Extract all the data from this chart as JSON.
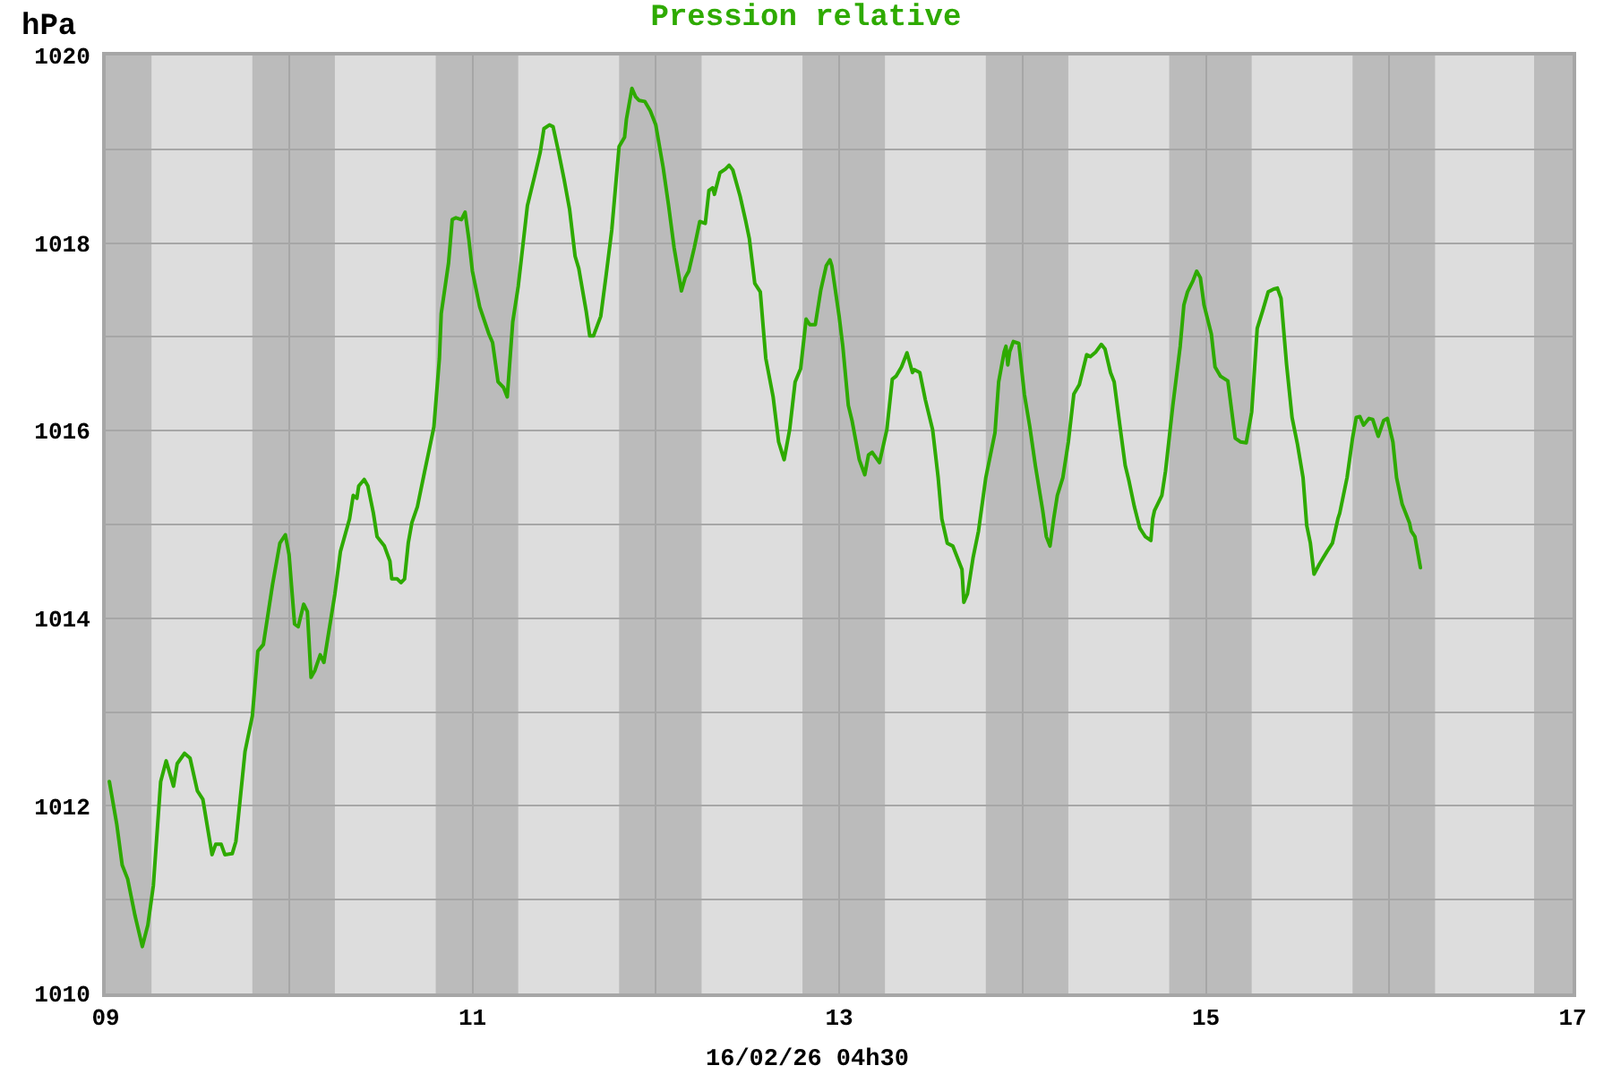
{
  "chart_data": {
    "type": "line",
    "title": "Pression relative",
    "ylabel": "hPa",
    "xlabel": "16/02/26 04h30",
    "x": [
      9.02,
      9.06,
      9.09,
      9.12,
      9.16,
      9.2,
      9.23,
      9.26,
      9.3,
      9.33,
      9.37,
      9.39,
      9.43,
      9.46,
      9.5,
      9.53,
      9.58,
      9.6,
      9.63,
      9.65,
      9.69,
      9.71,
      9.76,
      9.8,
      9.83,
      9.86,
      9.91,
      9.95,
      9.98,
      10.0,
      10.03,
      10.05,
      10.08,
      10.1,
      10.12,
      10.14,
      10.17,
      10.19,
      10.25,
      10.28,
      10.33,
      10.35,
      10.37,
      10.38,
      10.41,
      10.43,
      10.46,
      10.48,
      10.52,
      10.55,
      10.56,
      10.59,
      10.61,
      10.63,
      10.65,
      10.67,
      10.7,
      10.74,
      10.77,
      10.79,
      10.82,
      10.83,
      10.87,
      10.89,
      10.91,
      10.94,
      10.96,
      10.98,
      11.0,
      11.04,
      11.09,
      11.11,
      11.14,
      11.17,
      11.19,
      11.22,
      11.25,
      11.3,
      11.34,
      11.37,
      11.39,
      11.42,
      11.44,
      11.47,
      11.5,
      11.53,
      11.56,
      11.58,
      11.62,
      11.64,
      11.66,
      11.7,
      11.73,
      11.76,
      11.8,
      11.83,
      11.84,
      11.87,
      11.89,
      11.91,
      11.94,
      11.97,
      12.0,
      12.04,
      12.07,
      12.1,
      12.14,
      12.16,
      12.18,
      12.21,
      12.24,
      12.27,
      12.29,
      12.31,
      12.32,
      12.35,
      12.38,
      12.4,
      12.42,
      12.46,
      12.49,
      12.51,
      12.54,
      12.57,
      12.6,
      12.64,
      12.67,
      12.7,
      12.73,
      12.76,
      12.79,
      12.82,
      12.84,
      12.87,
      12.9,
      12.93,
      12.95,
      12.96,
      13.0,
      13.02,
      13.05,
      13.07,
      13.11,
      13.14,
      13.16,
      13.18,
      13.22,
      13.26,
      13.29,
      13.31,
      13.34,
      13.37,
      13.4,
      13.41,
      13.44,
      13.47,
      13.51,
      13.54,
      13.56,
      13.59,
      13.62,
      13.67,
      13.68,
      13.7,
      13.73,
      13.76,
      13.8,
      13.85,
      13.87,
      13.9,
      13.91,
      13.92,
      13.93,
      13.95,
      13.98,
      14.01,
      14.04,
      14.07,
      14.11,
      14.13,
      14.15,
      14.17,
      14.19,
      14.22,
      14.25,
      14.28,
      14.31,
      14.35,
      14.37,
      14.4,
      14.43,
      14.45,
      14.48,
      14.5,
      14.53,
      14.56,
      14.58,
      14.61,
      14.64,
      14.66,
      14.67,
      14.7,
      14.71,
      14.72,
      14.76,
      14.78,
      14.82,
      14.86,
      14.88,
      14.9,
      14.93,
      14.95,
      14.97,
      14.99,
      15.03,
      15.05,
      15.08,
      15.12,
      15.16,
      15.19,
      15.22,
      15.25,
      15.28,
      15.31,
      15.34,
      15.37,
      15.39,
      15.41,
      15.44,
      15.47,
      15.5,
      15.53,
      15.55,
      15.57,
      15.59,
      15.62,
      15.66,
      15.69,
      15.72,
      15.73,
      15.77,
      15.8,
      15.82,
      15.84,
      15.86,
      15.89,
      15.91,
      15.94,
      15.97,
      15.99,
      16.02,
      16.04,
      16.07,
      16.11,
      16.12,
      16.14,
      16.17
    ],
    "series": [
      {
        "color": "#2eaa00",
        "values": [
          1012.26,
          1011.81,
          1011.37,
          1011.22,
          1010.83,
          1010.5,
          1010.73,
          1011.15,
          1012.26,
          1012.48,
          1012.21,
          1012.45,
          1012.56,
          1012.51,
          1012.16,
          1012.07,
          1011.48,
          1011.59,
          1011.59,
          1011.48,
          1011.49,
          1011.62,
          1012.58,
          1012.96,
          1013.65,
          1013.72,
          1014.36,
          1014.8,
          1014.89,
          1014.68,
          1013.94,
          1013.91,
          1014.15,
          1014.07,
          1013.37,
          1013.44,
          1013.61,
          1013.53,
          1014.26,
          1014.71,
          1015.06,
          1015.31,
          1015.28,
          1015.41,
          1015.48,
          1015.41,
          1015.12,
          1014.87,
          1014.77,
          1014.61,
          1014.42,
          1014.42,
          1014.38,
          1014.42,
          1014.8,
          1015.02,
          1015.19,
          1015.57,
          1015.85,
          1016.04,
          1016.77,
          1017.25,
          1017.79,
          1018.25,
          1018.27,
          1018.25,
          1018.33,
          1018.05,
          1017.7,
          1017.32,
          1017.03,
          1016.94,
          1016.52,
          1016.46,
          1016.36,
          1017.16,
          1017.54,
          1018.4,
          1018.72,
          1018.97,
          1019.22,
          1019.26,
          1019.24,
          1018.97,
          1018.68,
          1018.36,
          1017.86,
          1017.73,
          1017.28,
          1017.01,
          1017.01,
          1017.22,
          1017.67,
          1018.14,
          1019.03,
          1019.13,
          1019.32,
          1019.65,
          1019.56,
          1019.52,
          1019.51,
          1019.41,
          1019.26,
          1018.81,
          1018.4,
          1017.95,
          1017.49,
          1017.63,
          1017.7,
          1017.95,
          1018.23,
          1018.21,
          1018.56,
          1018.59,
          1018.52,
          1018.75,
          1018.79,
          1018.83,
          1018.78,
          1018.5,
          1018.24,
          1018.05,
          1017.57,
          1017.48,
          1016.77,
          1016.36,
          1015.88,
          1015.69,
          1016.01,
          1016.52,
          1016.66,
          1017.19,
          1017.13,
          1017.13,
          1017.5,
          1017.76,
          1017.82,
          1017.76,
          1017.22,
          1016.9,
          1016.27,
          1016.11,
          1015.69,
          1015.53,
          1015.74,
          1015.77,
          1015.66,
          1016.01,
          1016.55,
          1016.58,
          1016.68,
          1016.83,
          1016.62,
          1016.65,
          1016.62,
          1016.33,
          1016.01,
          1015.5,
          1015.06,
          1014.8,
          1014.77,
          1014.52,
          1014.17,
          1014.26,
          1014.64,
          1014.93,
          1015.5,
          1015.98,
          1016.52,
          1016.84,
          1016.9,
          1016.7,
          1016.84,
          1016.95,
          1016.93,
          1016.39,
          1016.04,
          1015.63,
          1015.15,
          1014.87,
          1014.77,
          1015.06,
          1015.31,
          1015.5,
          1015.88,
          1016.39,
          1016.49,
          1016.81,
          1016.79,
          1016.84,
          1016.92,
          1016.87,
          1016.62,
          1016.52,
          1016.07,
          1015.63,
          1015.47,
          1015.19,
          1014.96,
          1014.9,
          1014.87,
          1014.83,
          1015.06,
          1015.15,
          1015.31,
          1015.57,
          1016.27,
          1016.9,
          1017.34,
          1017.48,
          1017.6,
          1017.7,
          1017.63,
          1017.34,
          1017.03,
          1016.68,
          1016.58,
          1016.53,
          1015.92,
          1015.88,
          1015.87,
          1016.2,
          1017.09,
          1017.28,
          1017.48,
          1017.51,
          1017.52,
          1017.41,
          1016.71,
          1016.14,
          1015.85,
          1015.5,
          1014.99,
          1014.8,
          1014.47,
          1014.58,
          1014.71,
          1014.8,
          1015.06,
          1015.12,
          1015.5,
          1015.92,
          1016.14,
          1016.15,
          1016.06,
          1016.13,
          1016.12,
          1015.94,
          1016.11,
          1016.13,
          1015.88,
          1015.5,
          1015.22,
          1015.02,
          1014.93,
          1014.87,
          1014.54
        ]
      }
    ],
    "xlim": [
      9,
      17
    ],
    "xticks": [
      {
        "value": 9,
        "label": "09"
      },
      {
        "value": 10,
        "label": null
      },
      11,
      {
        "value": 12,
        "label": null
      },
      13,
      {
        "value": 14,
        "label": null
      },
      15,
      {
        "value": 16,
        "label": null
      },
      17
    ],
    "ylim": [
      1010,
      1020
    ],
    "yticks": [
      1010,
      {
        "value": 1011,
        "label": null
      },
      1012,
      {
        "value": 1013,
        "label": null
      },
      1014,
      {
        "value": 1015,
        "label": null
      },
      1016,
      {
        "value": 1017,
        "label": null
      },
      1018,
      {
        "value": 1019,
        "label": null
      },
      1020
    ],
    "grid": true,
    "bands": [
      {
        "axis": "x",
        "from": 9.0,
        "to": 9.25,
        "color": "#bbbbbb"
      },
      {
        "axis": "x",
        "from": 9.8,
        "to": 10.25,
        "color": "#bbbbbb"
      },
      {
        "axis": "x",
        "from": 10.8,
        "to": 11.25,
        "color": "#bbbbbb"
      },
      {
        "axis": "x",
        "from": 11.8,
        "to": 12.25,
        "color": "#bbbbbb"
      },
      {
        "axis": "x",
        "from": 12.8,
        "to": 13.25,
        "color": "#bbbbbb"
      },
      {
        "axis": "x",
        "from": 13.8,
        "to": 14.25,
        "color": "#bbbbbb"
      },
      {
        "axis": "x",
        "from": 14.8,
        "to": 15.25,
        "color": "#bbbbbb"
      },
      {
        "axis": "x",
        "from": 15.8,
        "to": 16.25,
        "color": "#bbbbbb"
      },
      {
        "axis": "x",
        "from": 16.79,
        "to": 17.0,
        "color": "#bbbbbb"
      }
    ]
  }
}
